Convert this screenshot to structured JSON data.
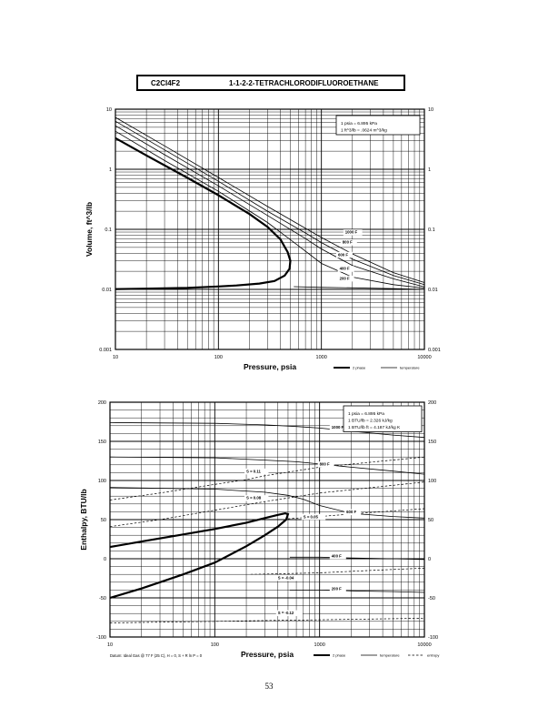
{
  "page": {
    "formula": "C2Cl4F2",
    "title": "1-1-2-2-TETRACHLORODIFLUOROETHANE",
    "page_number": "53"
  },
  "chart_data": [
    {
      "type": "line",
      "xscale": "log",
      "yscale": "log",
      "xlim": [
        10,
        10000
      ],
      "ylim": [
        0.001,
        10
      ],
      "xlabel": "Pressure,  psia",
      "ylabel": "Volume, ft^3/lb",
      "x_ticks": [
        "10",
        "100",
        "1000",
        "10000"
      ],
      "y_ticks": [
        "0.001",
        "0.01",
        "0.1",
        "1",
        "10"
      ],
      "y_ticks_right": [
        "0.001",
        "0.01",
        "0.1",
        "1",
        "10"
      ],
      "grid": true,
      "note_lines": [
        "1 psia  =  6.895 kPa",
        "1 ft^3/lb  =  .0624 m^3/kg"
      ],
      "legend": [
        {
          "label": "2 phase",
          "style": "thick"
        },
        {
          "label": "temperature",
          "style": "thin"
        }
      ],
      "series": [
        {
          "name": "2 phase",
          "kind": "two-phase",
          "x": [
            10,
            20,
            50,
            100,
            200,
            300,
            400,
            470,
            500,
            490,
            440,
            350,
            250,
            150,
            100,
            50,
            20,
            10
          ],
          "y": [
            3.3,
            1.7,
            0.72,
            0.37,
            0.18,
            0.11,
            0.068,
            0.042,
            0.03,
            0.022,
            0.017,
            0.0138,
            0.0125,
            0.0116,
            0.0112,
            0.0106,
            0.0103,
            0.0101
          ]
        },
        {
          "name": "200 F",
          "kind": "temperature",
          "x": [
            540,
            1000,
            2000,
            5000,
            10000
          ],
          "y": [
            0.0111,
            0.0108,
            0.0106,
            0.0103,
            0.01
          ]
        },
        {
          "name": "400 F",
          "kind": "temperature",
          "x": [
            10,
            30,
            100,
            300,
            600,
            1000,
            2000,
            5000,
            10000
          ],
          "y": [
            4.3,
            1.4,
            0.43,
            0.13,
            0.053,
            0.027,
            0.016,
            0.012,
            0.0105
          ]
        },
        {
          "name": "600 F",
          "kind": "temperature",
          "x": [
            10,
            30,
            100,
            300,
            700,
            1000,
            2000,
            5000,
            10000
          ],
          "y": [
            5.3,
            1.75,
            0.53,
            0.17,
            0.07,
            0.047,
            0.025,
            0.015,
            0.011
          ]
        },
        {
          "name": "800 F",
          "kind": "temperature",
          "x": [
            10,
            30,
            100,
            300,
            700,
            1000,
            2000,
            5000,
            10000
          ],
          "y": [
            6.3,
            2.1,
            0.63,
            0.2,
            0.087,
            0.06,
            0.032,
            0.017,
            0.012
          ]
        },
        {
          "name": "1000 F",
          "kind": "temperature",
          "x": [
            10,
            30,
            100,
            300,
            700,
            1000,
            2000,
            5000,
            10000
          ],
          "y": [
            7.3,
            2.45,
            0.73,
            0.24,
            0.104,
            0.073,
            0.039,
            0.019,
            0.013
          ]
        }
      ],
      "curve_labels": [
        {
          "text": "1000 F",
          "x": 1700,
          "y": 0.085
        },
        {
          "text": "800 F",
          "x": 1600,
          "y": 0.058
        },
        {
          "text": "600 F",
          "x": 1450,
          "y": 0.036
        },
        {
          "text": "400 F",
          "x": 1500,
          "y": 0.021
        },
        {
          "text": "200 F",
          "x": 1500,
          "y": 0.0145
        }
      ]
    },
    {
      "type": "line",
      "xscale": "log",
      "yscale": "linear",
      "xlim": [
        10,
        10000
      ],
      "ylim": [
        -100,
        200
      ],
      "xlabel": "Pressure,  psia",
      "ylabel": "Enthalpy, BTU/lb",
      "x_ticks": [
        "10",
        "100",
        "1000",
        "10000"
      ],
      "y_ticks": [
        "-100",
        "-50",
        "0",
        "50",
        "100",
        "150",
        "200"
      ],
      "y_ticks_right": [
        "-100",
        "-50",
        "0",
        "50",
        "100",
        "150",
        "200"
      ],
      "grid": true,
      "note_lines": [
        "1 psia  =  6.895 kPa",
        "1 BTU/lb  =  2.326 kJ/kg",
        "1 BTU/lb ft  =  4.187 kJ/kg K"
      ],
      "datum_note": "Datum: Ideal Gas @ 77 F (25 C),  H = 0,  S + R ln P = 0",
      "legend": [
        {
          "label": "2 phase",
          "style": "thick"
        },
        {
          "label": "temperature",
          "style": "thin"
        },
        {
          "label": "entropy",
          "style": "dashed"
        }
      ],
      "series": [
        {
          "name": "2 phase",
          "kind": "two-phase",
          "x": [
            10,
            20,
            50,
            100,
            200,
            300,
            400,
            470,
            500,
            480,
            400,
            300,
            200,
            100,
            50,
            20,
            10
          ],
          "y": [
            15,
            22,
            31,
            38,
            46,
            52,
            56,
            58,
            57,
            50,
            41,
            30,
            16,
            -5,
            -20,
            -38,
            -50
          ]
        },
        {
          "name": "1000 F",
          "kind": "temperature",
          "x": [
            10,
            100,
            300,
            600,
            1000,
            2000,
            5000,
            10000
          ],
          "y": [
            174,
            173,
            171,
            169,
            167,
            163,
            158,
            155
          ]
        },
        {
          "name": "800 F",
          "kind": "temperature",
          "x": [
            10,
            100,
            300,
            600,
            1000,
            2000,
            5000,
            10000
          ],
          "y": [
            130,
            129,
            126,
            124,
            121,
            117,
            112,
            108
          ]
        },
        {
          "name": "600 F",
          "kind": "temperature",
          "x": [
            10,
            100,
            300,
            500,
            700,
            1000,
            2000,
            5000,
            10000
          ],
          "y": [
            91,
            89,
            85,
            81,
            76,
            68,
            58,
            54,
            52
          ]
        },
        {
          "name": "400 F",
          "kind": "temperature",
          "x": [
            520,
            1000,
            2000,
            5000,
            10000
          ],
          "y": [
            2,
            2,
            1,
            0,
            -1
          ]
        },
        {
          "name": "200 F",
          "kind": "temperature",
          "x": [
            520,
            1000,
            2000,
            5000,
            10000
          ],
          "y": [
            -40,
            -40,
            -41,
            -42,
            -43
          ]
        },
        {
          "name": "S = 0.11",
          "kind": "entropy",
          "x": [
            10,
            30,
            100,
            200,
            300,
            1000,
            10000
          ],
          "y": [
            75,
            84,
            95,
            101,
            106,
            117,
            130
          ]
        },
        {
          "name": "S = 0.08",
          "kind": "entropy",
          "x": [
            10,
            30,
            100,
            200,
            300,
            1000,
            10000
          ],
          "y": [
            41,
            50,
            62,
            69,
            73,
            84,
            98
          ]
        },
        {
          "name": "S = 0.05",
          "kind": "entropy",
          "x": [
            500,
            1000,
            3000,
            10000
          ],
          "y": [
            51,
            54,
            59,
            64
          ]
        },
        {
          "name": "S = -0.04",
          "kind": "entropy",
          "x": [
            220,
            1000,
            3000,
            10000
          ],
          "y": [
            -20,
            -18,
            -15,
            -12
          ]
        },
        {
          "name": "S = -0.12",
          "kind": "entropy",
          "x": [
            10,
            100,
            300,
            1000,
            10000
          ],
          "y": [
            -82,
            -80,
            -79,
            -78,
            -76
          ]
        }
      ],
      "curve_labels": [
        {
          "text": "1000 F",
          "x": 1300,
          "y": 166
        },
        {
          "text": "800 F",
          "x": 1000,
          "y": 119
        },
        {
          "text": "600 F",
          "x": 1800,
          "y": 58
        },
        {
          "text": "400 F",
          "x": 1300,
          "y": 2
        },
        {
          "text": "200 F",
          "x": 1300,
          "y": -40
        },
        {
          "text": "S = 0.11",
          "x": 200,
          "y": 110
        },
        {
          "text": "S = 0.08",
          "x": 200,
          "y": 76
        },
        {
          "text": "S = 0.05",
          "x": 700,
          "y": 52
        },
        {
          "text": "S = -0.04",
          "x": 400,
          "y": -26
        },
        {
          "text": "S = -0.12",
          "x": 400,
          "y": -71
        }
      ]
    }
  ]
}
